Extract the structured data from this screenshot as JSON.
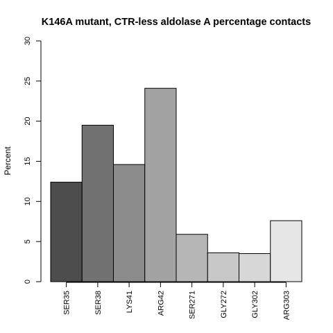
{
  "chart_data": {
    "type": "bar",
    "title": "K146A mutant, CTR-less aldolase A percentage contacts",
    "xlabel": "",
    "ylabel": "Percent",
    "ylim": [
      0,
      30
    ],
    "yticks": [
      0,
      5,
      10,
      15,
      20,
      25,
      30
    ],
    "categories": [
      "SER35",
      "SER38",
      "LYS41",
      "ARG42",
      "SER271",
      "GLY272",
      "GLY302",
      "ARG303"
    ],
    "values": [
      12.4,
      19.5,
      14.6,
      24.1,
      5.9,
      3.6,
      3.5,
      7.6
    ],
    "colors": [
      "#4d4d4d",
      "#717171",
      "#8c8c8c",
      "#a3a3a3",
      "#b6b6b6",
      "#c7c7c7",
      "#d7d7d7",
      "#e6e6e6"
    ],
    "grid": false,
    "legend": "none"
  }
}
